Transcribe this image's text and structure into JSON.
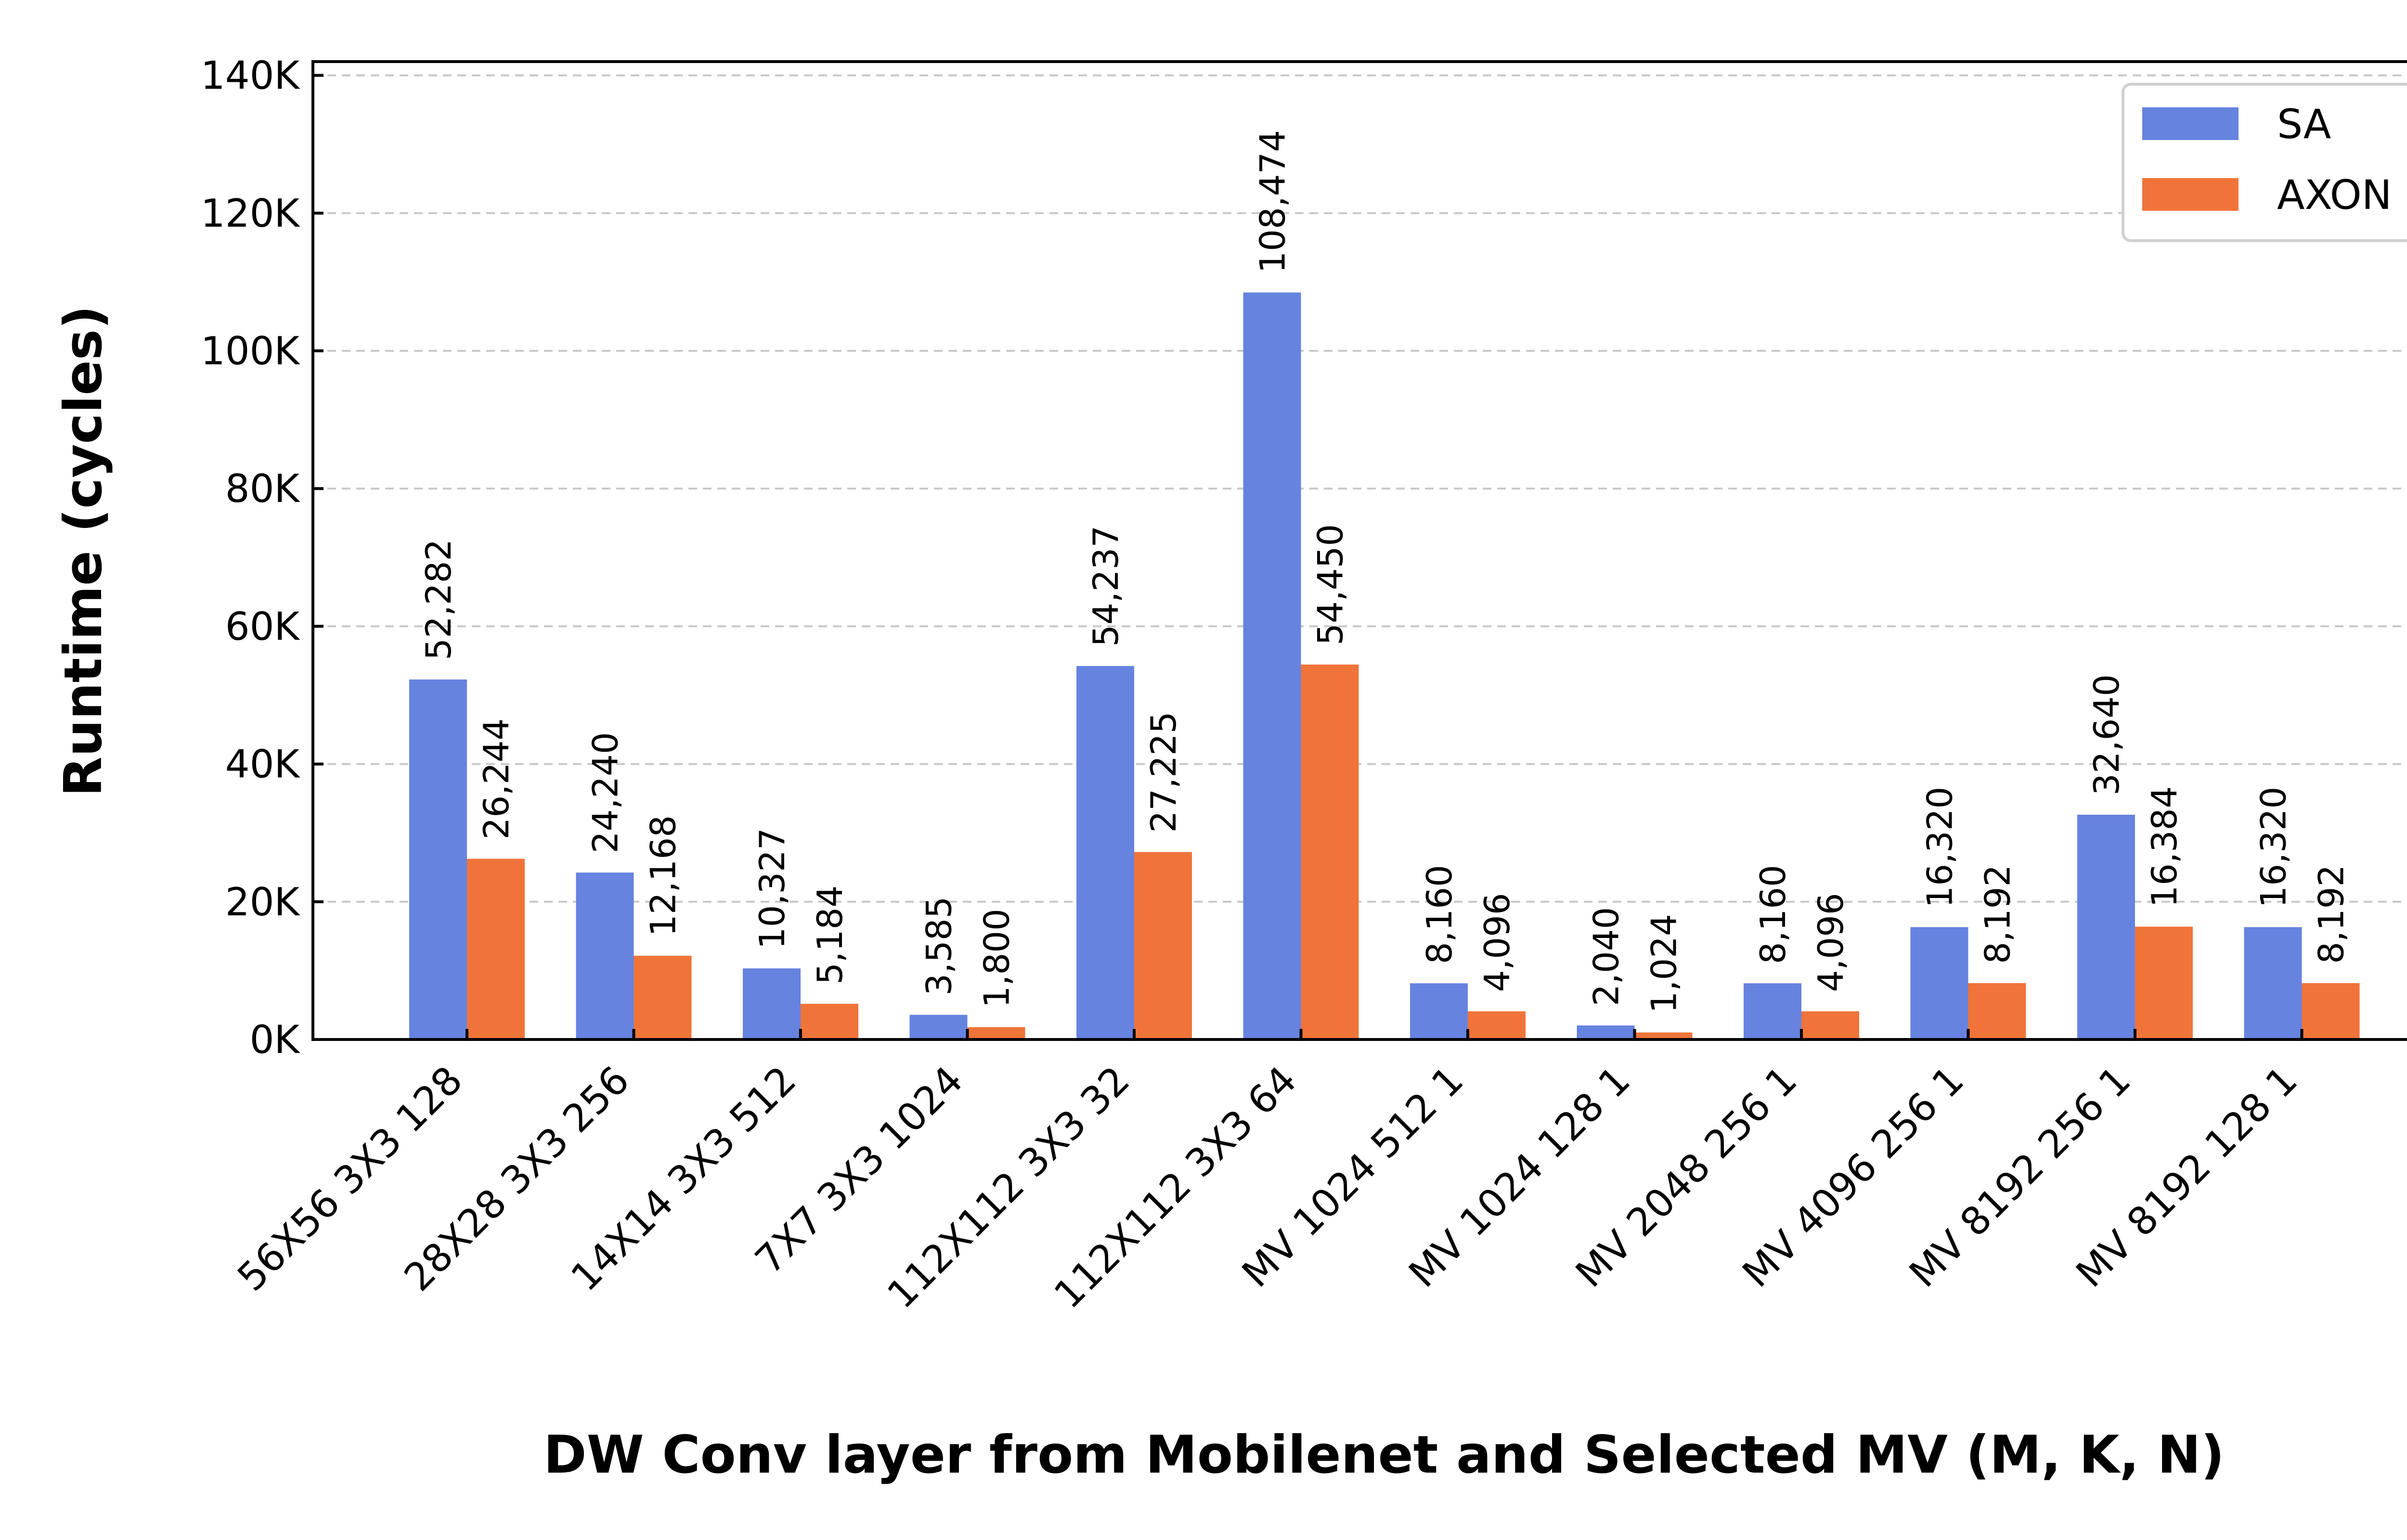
{
  "chart_data": {
    "type": "bar",
    "title": "",
    "xlabel": "DW Conv layer from Mobilenet and Selected MV (M, K, N)",
    "ylabel": "Runtime (cycles)",
    "ylim": [
      0,
      142000
    ],
    "yticks": [
      0,
      20000,
      40000,
      60000,
      80000,
      100000,
      120000,
      140000
    ],
    "ytick_labels": [
      "0K",
      "20K",
      "40K",
      "60K",
      "80K",
      "100K",
      "120K",
      "140K"
    ],
    "grid": true,
    "legend_position": "top-right",
    "categories": [
      "56X56 3X3 128",
      "28X28 3X3 256",
      "14X14 3X3 512",
      "7X7 3X3 1024",
      "112X112 3X3 32",
      "112X112 3X3 64",
      "MV 1024 512 1",
      "MV 1024 128 1",
      "MV 2048 256 1",
      "MV 4096 256 1",
      "MV 8192 256 1",
      "MV 8192 128 1"
    ],
    "series": [
      {
        "name": "SA",
        "color": "#6683e0",
        "values": [
          52282,
          24240,
          10327,
          3585,
          54237,
          108474,
          8160,
          2040,
          8160,
          16320,
          32640,
          16320
        ],
        "labels": [
          "52,282",
          "24,240",
          "10,327",
          "3,585",
          "54,237",
          "108,474",
          "8,160",
          "2,040",
          "8,160",
          "16,320",
          "32,640",
          "16,320"
        ]
      },
      {
        "name": "AXON",
        "color": "#f0743a",
        "values": [
          26244,
          12168,
          5184,
          1800,
          27225,
          54450,
          4096,
          1024,
          4096,
          8192,
          16384,
          8192
        ],
        "labels": [
          "26,244",
          "12,168",
          "5,184",
          "1,800",
          "27,225",
          "54,450",
          "4,096",
          "1,024",
          "4,096",
          "8,192",
          "16,384",
          "8,192"
        ]
      }
    ]
  }
}
